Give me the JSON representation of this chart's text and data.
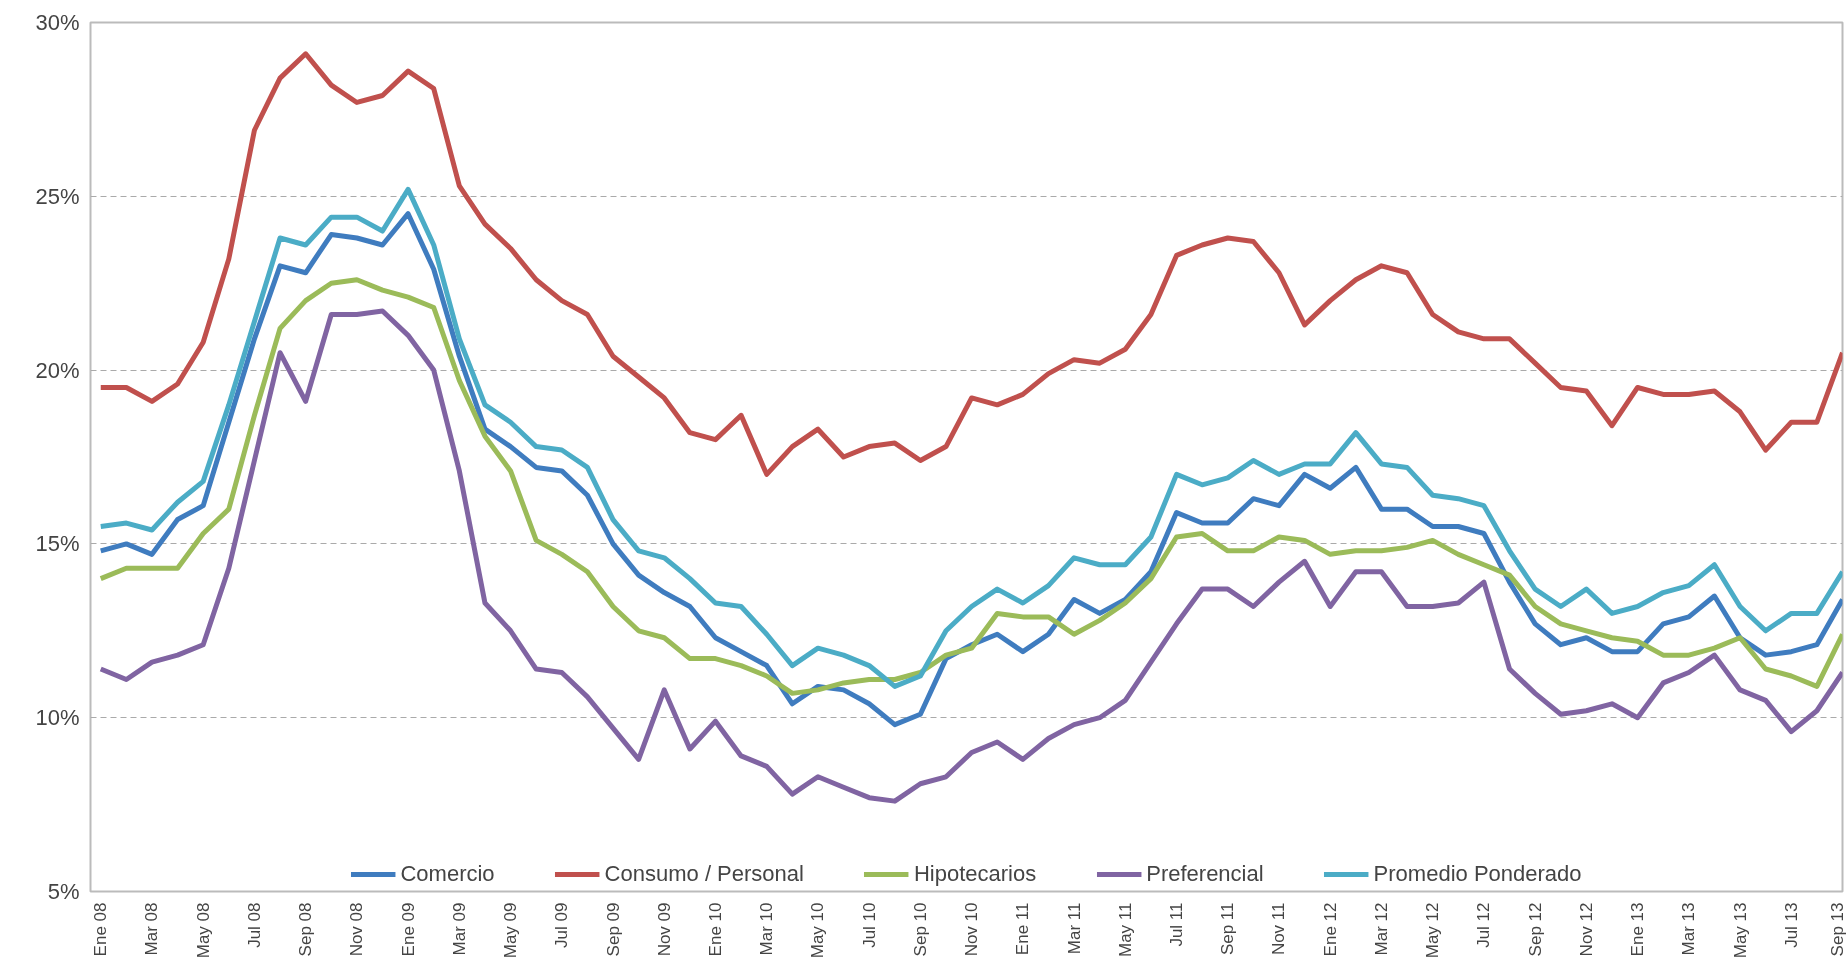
{
  "chart_data": {
    "type": "line",
    "categories": [
      "Ene 08",
      null,
      "Mar 08",
      null,
      "May 08",
      null,
      "Jul 08",
      null,
      "Sep 08",
      null,
      "Nov 08",
      null,
      "Ene 09",
      null,
      "Mar 09",
      null,
      "May 09",
      null,
      "Jul 09",
      null,
      "Sep 09",
      null,
      "Nov 09",
      null,
      "Ene 10",
      null,
      "Mar 10",
      null,
      "May 10",
      null,
      "Jul 10",
      null,
      "Sep 10",
      null,
      "Nov 10",
      null,
      "Ene 11",
      null,
      "Mar 11",
      null,
      "May 11",
      null,
      "Jul 11",
      null,
      "Sep 11",
      null,
      "Nov 11",
      null,
      "Ene 12",
      null,
      "Mar 12",
      null,
      "May 12",
      null,
      "Jul 12",
      null,
      "Sep 12",
      null,
      "Nov 12",
      null,
      "Ene 13",
      null,
      "Mar 13",
      null,
      "May 13",
      null,
      "Jul 13",
      null,
      "Sep 13"
    ],
    "series": [
      {
        "name": "Comercio",
        "color": "#3f7cbf",
        "values": [
          14.8,
          15.0,
          14.7,
          15.7,
          16.1,
          18.5,
          20.9,
          23.0,
          22.8,
          23.9,
          23.8,
          23.6,
          24.5,
          22.9,
          20.4,
          18.3,
          17.8,
          17.2,
          17.1,
          16.4,
          15.0,
          14.1,
          13.6,
          13.2,
          12.3,
          11.9,
          11.5,
          10.4,
          10.9,
          10.8,
          10.4,
          9.8,
          10.1,
          11.7,
          12.1,
          12.4,
          11.9,
          12.4,
          13.4,
          13.0,
          13.4,
          14.2,
          15.9,
          15.6,
          15.6,
          16.3,
          16.1,
          17.0,
          16.6,
          17.2,
          16.0,
          16.0,
          15.5,
          15.5,
          15.3,
          13.9,
          12.7,
          12.1,
          12.3,
          11.9,
          11.9,
          12.7,
          12.9,
          13.5,
          12.3,
          11.8,
          11.9,
          12.1,
          13.4
        ]
      },
      {
        "name": "Consumo / Personal",
        "color": "#c0504d",
        "values": [
          19.5,
          19.5,
          19.1,
          19.6,
          20.8,
          23.2,
          26.9,
          28.4,
          29.1,
          28.2,
          27.7,
          27.9,
          28.6,
          28.1,
          25.3,
          24.2,
          23.5,
          22.6,
          22.0,
          21.6,
          20.4,
          19.8,
          19.2,
          18.2,
          18.0,
          18.7,
          17.0,
          17.8,
          18.3,
          17.5,
          17.8,
          17.9,
          17.4,
          17.8,
          19.2,
          19.0,
          19.3,
          19.9,
          20.3,
          20.2,
          20.6,
          21.6,
          23.3,
          23.6,
          23.8,
          23.7,
          22.8,
          21.3,
          22.0,
          22.6,
          23.0,
          22.8,
          21.6,
          21.1,
          20.9,
          20.9,
          20.2,
          19.5,
          19.4,
          18.4,
          19.5,
          19.3,
          19.3,
          19.4,
          18.8,
          17.7,
          18.5,
          18.5,
          20.5
        ]
      },
      {
        "name": "Hipotecarios",
        "color": "#9bbb59",
        "values": [
          14.0,
          14.3,
          14.3,
          14.3,
          15.3,
          16.0,
          18.7,
          21.2,
          22.0,
          22.5,
          22.6,
          22.3,
          22.1,
          21.8,
          19.7,
          18.1,
          17.1,
          15.1,
          14.7,
          14.2,
          13.2,
          12.5,
          12.3,
          11.7,
          11.7,
          11.5,
          11.2,
          10.7,
          10.8,
          11.0,
          11.1,
          11.1,
          11.3,
          11.8,
          12.0,
          13.0,
          12.9,
          12.9,
          12.4,
          12.8,
          13.3,
          14.0,
          15.2,
          15.3,
          14.8,
          14.8,
          15.2,
          15.1,
          14.7,
          14.8,
          14.8,
          14.9,
          15.1,
          14.7,
          14.4,
          14.1,
          13.2,
          12.7,
          12.5,
          12.3,
          12.2,
          11.8,
          11.8,
          12.0,
          12.3,
          11.4,
          11.2,
          10.9,
          12.4
        ]
      },
      {
        "name": "Preferencial",
        "color": "#8064a2",
        "values": [
          11.4,
          11.1,
          11.6,
          11.8,
          12.1,
          14.3,
          17.4,
          20.5,
          19.1,
          21.6,
          21.6,
          21.7,
          21.0,
          20.0,
          17.1,
          13.3,
          12.5,
          11.4,
          11.3,
          10.6,
          9.7,
          8.8,
          10.8,
          9.1,
          9.9,
          8.9,
          8.6,
          7.8,
          8.3,
          8.0,
          7.7,
          7.6,
          8.1,
          8.3,
          9.0,
          9.3,
          8.8,
          9.4,
          9.8,
          10.0,
          10.5,
          11.6,
          12.7,
          13.7,
          13.7,
          13.2,
          13.9,
          14.5,
          13.2,
          14.2,
          14.2,
          13.2,
          13.2,
          13.3,
          13.9,
          11.4,
          10.7,
          10.1,
          10.2,
          10.4,
          10.0,
          11.0,
          11.3,
          11.8,
          10.8,
          10.5,
          9.6,
          10.2,
          11.3
        ]
      },
      {
        "name": "Promedio Ponderado",
        "color": "#4bacc6",
        "values": [
          15.5,
          15.6,
          15.4,
          16.2,
          16.8,
          19.0,
          21.4,
          23.8,
          23.6,
          24.4,
          24.4,
          24.0,
          25.2,
          23.6,
          20.9,
          19.0,
          18.5,
          17.8,
          17.7,
          17.2,
          15.7,
          14.8,
          14.6,
          14.0,
          13.3,
          13.2,
          12.4,
          11.5,
          12.0,
          11.8,
          11.5,
          10.9,
          11.2,
          12.5,
          13.2,
          13.7,
          13.3,
          13.8,
          14.6,
          14.4,
          14.4,
          15.2,
          17.0,
          16.7,
          16.9,
          17.4,
          17.0,
          17.3,
          17.3,
          18.2,
          17.3,
          17.2,
          16.4,
          16.3,
          16.1,
          14.8,
          13.7,
          13.2,
          13.7,
          13.0,
          13.2,
          13.6,
          13.8,
          14.4,
          13.2,
          12.5,
          13.0,
          13.0,
          14.2
        ]
      }
    ],
    "ylim": [
      5,
      30
    ],
    "yticks": [
      {
        "value": 5,
        "label": "5%"
      },
      {
        "value": 10,
        "label": "10%"
      },
      {
        "value": 15,
        "label": "15%"
      },
      {
        "value": 20,
        "label": "20%"
      },
      {
        "value": 25,
        "label": "25%"
      },
      {
        "value": 30,
        "label": "30%"
      }
    ],
    "grid": "y",
    "legend": "bottom",
    "marker": "none",
    "line_style": "solid"
  }
}
